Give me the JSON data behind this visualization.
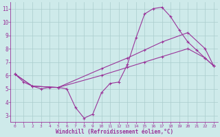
{
  "bg_color": "#ceeaea",
  "grid_color": "#aacccc",
  "line_color": "#993399",
  "marker_color": "#993399",
  "xlabel": "Windchill (Refroidissement éolien,°C)",
  "xlabel_color": "#993399",
  "tick_color": "#993399",
  "xlim": [
    -0.5,
    23.5
  ],
  "ylim": [
    2.5,
    11.5
  ],
  "yticks": [
    3,
    4,
    5,
    6,
    7,
    8,
    9,
    10,
    11
  ],
  "xticks": [
    0,
    1,
    2,
    3,
    4,
    5,
    6,
    7,
    8,
    9,
    10,
    11,
    12,
    13,
    14,
    15,
    16,
    17,
    18,
    19,
    20,
    21,
    22,
    23
  ],
  "curve1_x": [
    0,
    1,
    2,
    3,
    4,
    5,
    6,
    7,
    8,
    9,
    10,
    11,
    12,
    13,
    14,
    15,
    16,
    17,
    18,
    19,
    20,
    21,
    22,
    23
  ],
  "curve1_y": [
    6.1,
    5.5,
    5.2,
    5.0,
    5.1,
    5.1,
    5.0,
    3.6,
    2.8,
    3.1,
    4.7,
    5.4,
    5.5,
    6.8,
    8.8,
    10.6,
    11.0,
    11.1,
    10.4,
    9.4,
    8.5,
    7.9,
    7.3,
    6.7
  ],
  "curve2_x": [
    0,
    2,
    5,
    10,
    13,
    15,
    17,
    20,
    22,
    23
  ],
  "curve2_y": [
    6.1,
    5.2,
    5.1,
    6.5,
    7.3,
    7.9,
    8.5,
    9.2,
    8.0,
    6.7
  ],
  "curve3_x": [
    0,
    2,
    5,
    10,
    13,
    15,
    17,
    20,
    22,
    23
  ],
  "curve3_y": [
    6.1,
    5.2,
    5.1,
    6.0,
    6.6,
    7.0,
    7.4,
    8.0,
    7.3,
    6.7
  ]
}
